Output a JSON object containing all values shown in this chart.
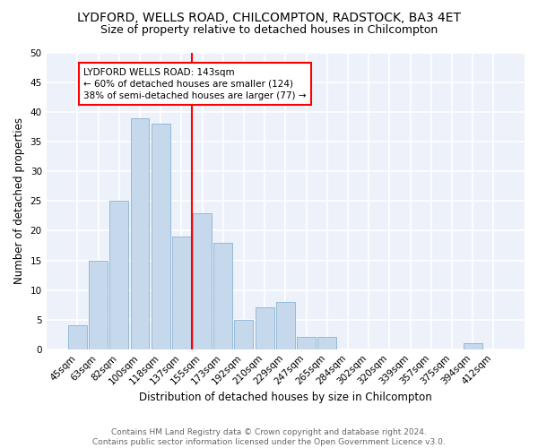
{
  "title": "LYDFORD, WELLS ROAD, CHILCOMPTON, RADSTOCK, BA3 4ET",
  "subtitle": "Size of property relative to detached houses in Chilcompton",
  "xlabel": "Distribution of detached houses by size in Chilcompton",
  "ylabel": "Number of detached properties",
  "footer1": "Contains HM Land Registry data © Crown copyright and database right 2024.",
  "footer2": "Contains public sector information licensed under the Open Government Licence v3.0.",
  "annotation_line1": "LYDFORD WELLS ROAD: 143sqm",
  "annotation_line2": "← 60% of detached houses are smaller (124)",
  "annotation_line3": "38% of semi-detached houses are larger (77) →",
  "bar_labels": [
    "45sqm",
    "63sqm",
    "82sqm",
    "100sqm",
    "118sqm",
    "137sqm",
    "155sqm",
    "173sqm",
    "192sqm",
    "210sqm",
    "229sqm",
    "247sqm",
    "265sqm",
    "284sqm",
    "302sqm",
    "320sqm",
    "339sqm",
    "357sqm",
    "375sqm",
    "394sqm",
    "412sqm"
  ],
  "bar_values": [
    4,
    15,
    25,
    39,
    38,
    19,
    23,
    18,
    5,
    7,
    8,
    2,
    2,
    0,
    0,
    0,
    0,
    0,
    0,
    1,
    0
  ],
  "bar_color": "#c5d8ec",
  "bar_edge_color": "#7aa8cc",
  "red_line_bar_index": 5,
  "ylim": [
    0,
    50
  ],
  "yticks": [
    0,
    5,
    10,
    15,
    20,
    25,
    30,
    35,
    40,
    45,
    50
  ],
  "background_color": "#edf2fa",
  "grid_color": "#ffffff",
  "title_fontsize": 10,
  "subtitle_fontsize": 9,
  "axis_label_fontsize": 8.5,
  "tick_fontsize": 7.5,
  "annotation_fontsize": 7.5,
  "footer_fontsize": 6.5
}
